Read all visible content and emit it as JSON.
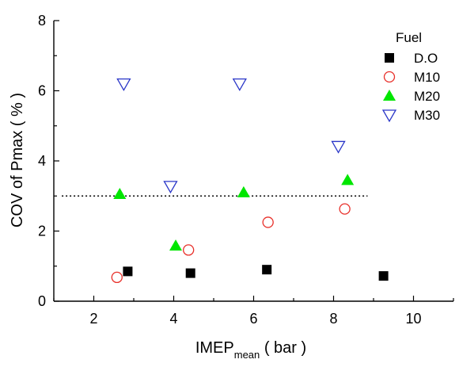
{
  "chart_data": {
    "type": "scatter",
    "xlabel": {
      "main": "IMEP",
      "sub": "mean",
      "unit": "( bar )"
    },
    "ylabel": "COV  of  Pmax  ( % )",
    "xlim": [
      1,
      11
    ],
    "ylim": [
      0,
      8
    ],
    "xticks": [
      2,
      4,
      6,
      8,
      10
    ],
    "yticks": [
      0,
      2,
      4,
      6,
      8
    ],
    "grid": false,
    "legend": {
      "title": "Fuel",
      "position": "top-right"
    },
    "reference_line": {
      "y": 3.0,
      "x_from": 1.2,
      "x_to": 8.85,
      "style": "dotted"
    },
    "series": [
      {
        "name": "D.O",
        "marker": "square-filled",
        "color": "#000000",
        "points": [
          [
            2.85,
            0.85
          ],
          [
            4.42,
            0.8
          ],
          [
            6.33,
            0.9
          ],
          [
            9.25,
            0.72
          ]
        ]
      },
      {
        "name": "M10",
        "marker": "circle-open",
        "color": "#e8302a",
        "points": [
          [
            2.58,
            0.68
          ],
          [
            4.37,
            1.46
          ],
          [
            6.36,
            2.25
          ],
          [
            8.28,
            2.63
          ]
        ]
      },
      {
        "name": "M20",
        "marker": "triangle-up-filled",
        "color": "#00e600",
        "points": [
          [
            2.65,
            3.05
          ],
          [
            4.05,
            1.58
          ],
          [
            5.75,
            3.1
          ],
          [
            8.35,
            3.45
          ]
        ]
      },
      {
        "name": "M30",
        "marker": "triangle-down-open",
        "color": "#2a36c8",
        "points": [
          [
            2.75,
            6.2
          ],
          [
            3.92,
            3.28
          ],
          [
            5.65,
            6.2
          ],
          [
            8.12,
            4.42
          ]
        ]
      }
    ]
  }
}
